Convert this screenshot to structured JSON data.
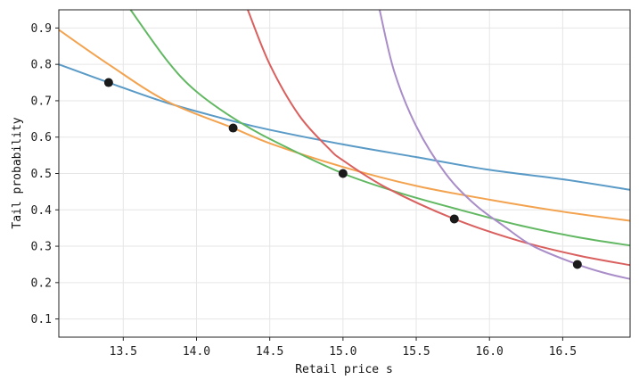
{
  "chart_data": {
    "type": "line",
    "xlabel": "Retail price s",
    "ylabel": "Tail probability",
    "xlim": [
      13.06,
      16.96
    ],
    "ylim": [
      0.05,
      0.95
    ],
    "xticks": [
      13.5,
      14.0,
      14.5,
      15.0,
      15.5,
      16.0,
      16.5
    ],
    "yticks": [
      0.1,
      0.2,
      0.3,
      0.4,
      0.5,
      0.6,
      0.7,
      0.8,
      0.9
    ],
    "grid": true,
    "legend": "none",
    "series": [
      {
        "color": "#5a9ac7",
        "points": [
          [
            13.06,
            0.8
          ],
          [
            13.4,
            0.75
          ],
          [
            13.8,
            0.694
          ],
          [
            14.25,
            0.644
          ],
          [
            14.5,
            0.62
          ],
          [
            15.0,
            0.58
          ],
          [
            15.5,
            0.545
          ],
          [
            16.0,
            0.51
          ],
          [
            16.5,
            0.484
          ],
          [
            16.96,
            0.455
          ]
        ]
      },
      {
        "color": "#f3a34f",
        "points": [
          [
            13.06,
            0.895
          ],
          [
            13.4,
            0.8
          ],
          [
            13.8,
            0.698
          ],
          [
            14.25,
            0.625
          ],
          [
            14.5,
            0.583
          ],
          [
            15.0,
            0.518
          ],
          [
            15.5,
            0.466
          ],
          [
            16.0,
            0.428
          ],
          [
            16.5,
            0.395
          ],
          [
            16.96,
            0.37
          ]
        ]
      },
      {
        "color": "#62b862",
        "points": [
          [
            13.55,
            0.95
          ],
          [
            13.8,
            0.81
          ],
          [
            14.0,
            0.725
          ],
          [
            14.3,
            0.64
          ],
          [
            14.6,
            0.575
          ],
          [
            15.0,
            0.5
          ],
          [
            15.4,
            0.445
          ],
          [
            15.8,
            0.4
          ],
          [
            16.2,
            0.358
          ],
          [
            16.6,
            0.325
          ],
          [
            16.96,
            0.302
          ]
        ]
      },
      {
        "color": "#d9605e",
        "points": [
          [
            14.35,
            0.95
          ],
          [
            14.5,
            0.8
          ],
          [
            14.7,
            0.66
          ],
          [
            14.9,
            0.57
          ],
          [
            15.0,
            0.536
          ],
          [
            15.3,
            0.46
          ],
          [
            15.76,
            0.375
          ],
          [
            16.2,
            0.315
          ],
          [
            16.6,
            0.275
          ],
          [
            16.96,
            0.248
          ]
        ]
      },
      {
        "color": "#a98dc8",
        "points": [
          [
            15.25,
            0.95
          ],
          [
            15.35,
            0.78
          ],
          [
            15.5,
            0.63
          ],
          [
            15.7,
            0.5
          ],
          [
            15.9,
            0.415
          ],
          [
            16.1,
            0.355
          ],
          [
            16.3,
            0.3
          ],
          [
            16.6,
            0.25
          ],
          [
            16.8,
            0.225
          ],
          [
            16.96,
            0.21
          ]
        ]
      }
    ],
    "markers": {
      "color": "#1a1a1a",
      "points": [
        [
          13.4,
          0.75
        ],
        [
          14.25,
          0.625
        ],
        [
          15.0,
          0.5
        ],
        [
          15.76,
          0.375
        ],
        [
          16.6,
          0.25
        ]
      ]
    }
  }
}
